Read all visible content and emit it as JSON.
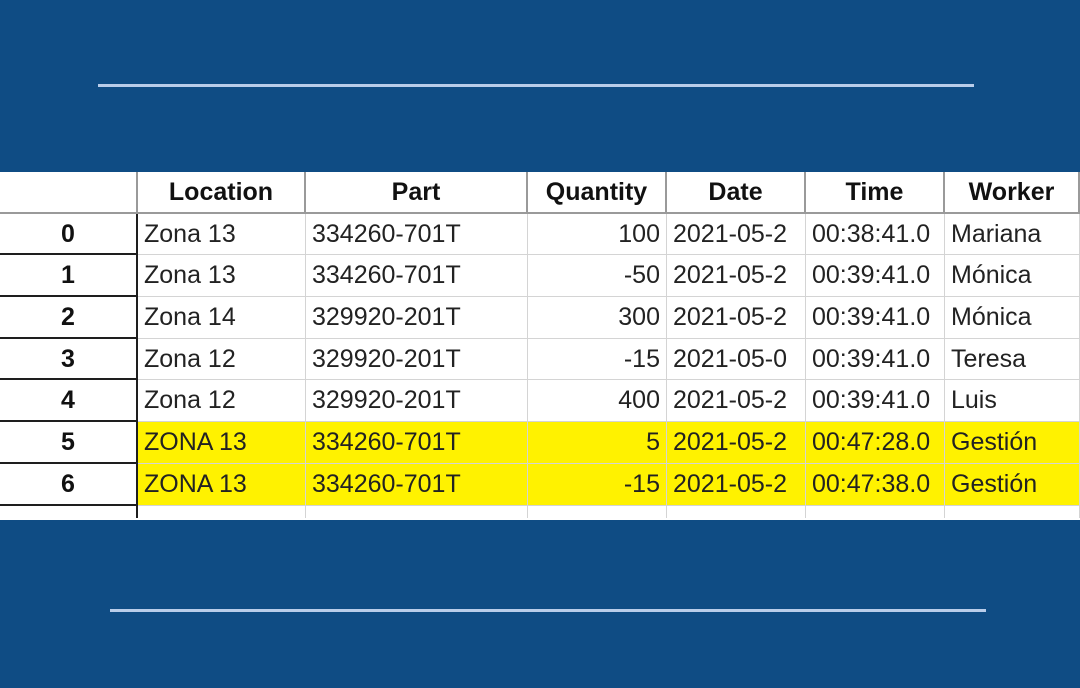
{
  "table": {
    "columns": [
      "Location",
      "Part",
      "Quantity",
      "Date",
      "Time",
      "Worker"
    ],
    "rows": [
      {
        "index": "0",
        "location": "Zona 13",
        "part": "334260-701T",
        "quantity": "100",
        "date": "2021-05-2",
        "time": "00:38:41.0",
        "worker": "Mariana",
        "highlighted": false
      },
      {
        "index": "1",
        "location": "Zona 13",
        "part": "334260-701T",
        "quantity": "-50",
        "date": "2021-05-2",
        "time": "00:39:41.0",
        "worker": "Mónica",
        "highlighted": false
      },
      {
        "index": "2",
        "location": "Zona 14",
        "part": "329920-201T",
        "quantity": "300",
        "date": "2021-05-2",
        "time": "00:39:41.0",
        "worker": "Mónica",
        "highlighted": false
      },
      {
        "index": "3",
        "location": "Zona 12",
        "part": "329920-201T",
        "quantity": "-15",
        "date": "2021-05-0",
        "time": "00:39:41.0",
        "worker": "Teresa",
        "highlighted": false
      },
      {
        "index": "4",
        "location": "Zona 12",
        "part": "329920-201T",
        "quantity": "400",
        "date": "2021-05-2",
        "time": "00:39:41.0",
        "worker": "Luis",
        "highlighted": false
      },
      {
        "index": "5",
        "location": "ZONA 13",
        "part": "334260-701T",
        "quantity": "5",
        "date": "2021-05-2",
        "time": "00:47:28.0",
        "worker": "Gestión",
        "highlighted": true
      },
      {
        "index": "6",
        "location": "ZONA 13",
        "part": "334260-701T",
        "quantity": "-15",
        "date": "2021-05-2",
        "time": "00:47:38.0",
        "worker": "Gestión",
        "highlighted": true
      }
    ]
  },
  "colors": {
    "background": "#0f4c84",
    "highlight": "#fff200",
    "rule": "#b9cdea"
  }
}
